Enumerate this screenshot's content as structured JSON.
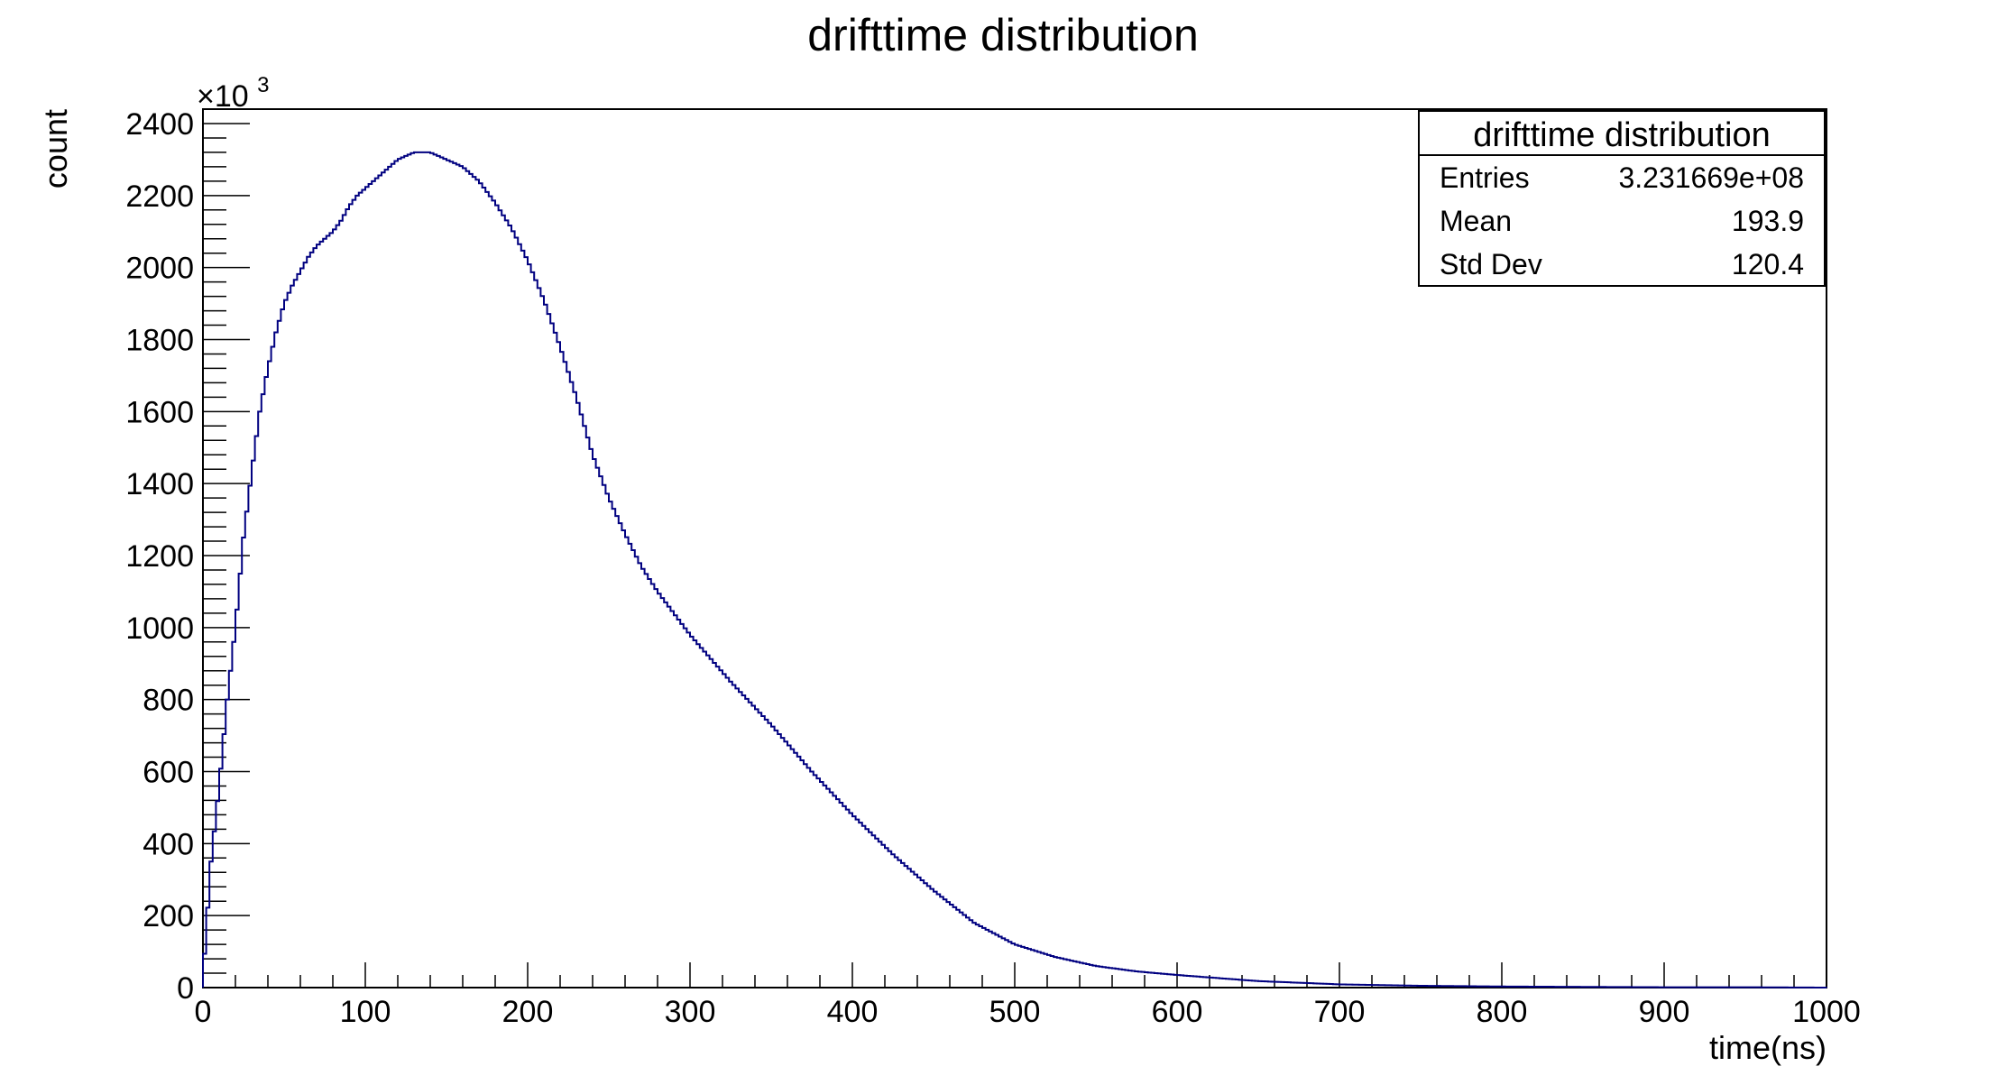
{
  "chart_data": {
    "type": "histogram",
    "title": "drifttime distribution",
    "xlabel": "time(ns)",
    "ylabel": "count",
    "y_multiplier_prefix": "×10",
    "y_multiplier_exponent": "3",
    "xlim": [
      0,
      1000
    ],
    "ylim": [
      0,
      2420
    ],
    "x_ticks": [
      0,
      100,
      200,
      300,
      400,
      500,
      600,
      700,
      800,
      900,
      1000
    ],
    "y_ticks": [
      0,
      200,
      400,
      600,
      800,
      1000,
      1200,
      1400,
      1600,
      1800,
      2000,
      2200,
      2400
    ],
    "line_color": "#000080",
    "grid": false,
    "series": [
      {
        "x": [
          0,
          5,
          10,
          15,
          20,
          25,
          30,
          35,
          40,
          45,
          50,
          55,
          60,
          65,
          70,
          75,
          80,
          85,
          90,
          95,
          100,
          110,
          120,
          130,
          140,
          150,
          160,
          170,
          180,
          190,
          200,
          210,
          220,
          230,
          240,
          250,
          260,
          270,
          280,
          290,
          300,
          325,
          350,
          375,
          400,
          425,
          450,
          475,
          500,
          525,
          550,
          575,
          600,
          650,
          700,
          750,
          800,
          850,
          900,
          950,
          1000
        ],
        "y": [
          30,
          350,
          560,
          800,
          1000,
          1250,
          1430,
          1600,
          1720,
          1820,
          1900,
          1950,
          1990,
          2030,
          2060,
          2080,
          2100,
          2130,
          2170,
          2200,
          2220,
          2260,
          2300,
          2320,
          2320,
          2300,
          2280,
          2240,
          2180,
          2110,
          2020,
          1910,
          1780,
          1640,
          1480,
          1360,
          1260,
          1170,
          1100,
          1040,
          980,
          850,
          730,
          600,
          480,
          370,
          270,
          180,
          120,
          85,
          60,
          45,
          35,
          18,
          9,
          5,
          3,
          2,
          1,
          1,
          0
        ]
      }
    ],
    "stats_box": {
      "title": "drifttime distribution",
      "rows": [
        {
          "label": "Entries",
          "value": "3.231669e+08"
        },
        {
          "label": "Mean",
          "value": "193.9"
        },
        {
          "label": "Std Dev",
          "value": "120.4"
        }
      ],
      "placement": "top-right"
    }
  }
}
